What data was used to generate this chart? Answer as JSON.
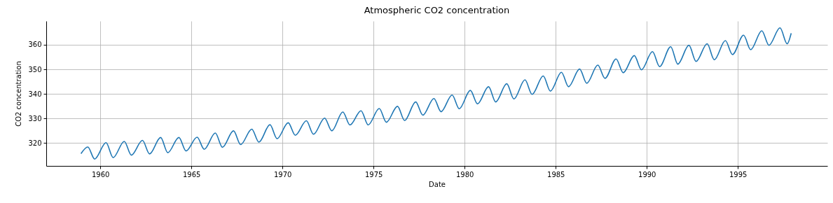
{
  "chart_data": {
    "type": "line",
    "title": "Atmospheric CO2 concentration",
    "xlabel": "Date",
    "ylabel": "CO2 concentration",
    "color": "#1f77b4",
    "grid": true,
    "x": [
      "1958-12-10",
      "1959-04-25",
      "1959-09-10",
      "1960-04-25",
      "1960-09-15",
      "1961-04-25",
      "1961-09-15",
      "1962-04-25",
      "1962-09-15",
      "1963-04-25",
      "1963-09-15",
      "1964-04-25",
      "1964-09-15",
      "1965-04-25",
      "1965-09-15",
      "1966-04-25",
      "1966-09-15",
      "1967-04-25",
      "1967-09-15",
      "1968-04-25",
      "1968-09-15",
      "1969-04-25",
      "1969-09-15",
      "1970-04-25",
      "1970-09-15",
      "1971-04-25",
      "1971-09-15",
      "1972-04-25",
      "1972-09-15",
      "1973-04-25",
      "1973-09-15",
      "1974-04-25",
      "1974-09-15",
      "1975-04-25",
      "1975-09-15",
      "1976-04-25",
      "1976-09-15",
      "1977-04-25",
      "1977-09-15",
      "1978-04-25",
      "1978-09-15",
      "1979-04-25",
      "1979-09-15",
      "1980-04-25",
      "1980-09-15",
      "1981-04-25",
      "1981-09-15",
      "1982-04-25",
      "1982-09-15",
      "1983-04-25",
      "1983-09-15",
      "1984-04-25",
      "1984-09-15",
      "1985-04-25",
      "1985-09-15",
      "1986-04-25",
      "1986-09-15",
      "1987-04-25",
      "1987-09-15",
      "1988-04-25",
      "1988-09-15",
      "1989-04-25",
      "1989-09-15",
      "1990-04-25",
      "1990-09-15",
      "1991-04-25",
      "1991-09-15",
      "1992-04-25",
      "1992-09-15",
      "1993-04-25",
      "1993-09-15",
      "1994-04-25",
      "1994-09-15",
      "1995-04-25",
      "1995-09-15",
      "1996-04-25",
      "1996-09-15",
      "1997-04-25",
      "1997-09-15",
      "1997-12-05"
    ],
    "values": [
      315.6,
      318.3,
      313.4,
      320.1,
      314.0,
      320.6,
      315.0,
      321.0,
      315.5,
      322.2,
      316.0,
      322.2,
      316.7,
      322.3,
      317.4,
      324.0,
      318.2,
      324.9,
      319.3,
      325.6,
      320.3,
      327.4,
      321.7,
      328.2,
      323.1,
      329.0,
      323.5,
      330.1,
      324.9,
      332.6,
      327.3,
      333.1,
      327.3,
      334.0,
      328.4,
      334.9,
      329.1,
      336.7,
      331.3,
      338.1,
      332.7,
      339.5,
      333.9,
      341.4,
      335.9,
      342.9,
      336.7,
      344.1,
      337.9,
      345.7,
      339.8,
      347.3,
      341.1,
      348.8,
      342.9,
      350.1,
      344.3,
      351.7,
      346.3,
      354.2,
      348.6,
      355.6,
      349.8,
      357.2,
      351.1,
      359.2,
      352.1,
      359.8,
      353.2,
      360.4,
      353.9,
      361.7,
      356.0,
      363.9,
      358.0,
      365.7,
      359.8,
      366.9,
      360.4,
      364.7
    ],
    "xlim": [
      "1957-01-12",
      "1999-12-01"
    ],
    "xticks": [
      "1960",
      "1965",
      "1970",
      "1975",
      "1980",
      "1985",
      "1990",
      "1995"
    ],
    "ylim": [
      310.6,
      369.7
    ],
    "yticks": [
      320,
      330,
      340,
      350,
      360
    ]
  }
}
